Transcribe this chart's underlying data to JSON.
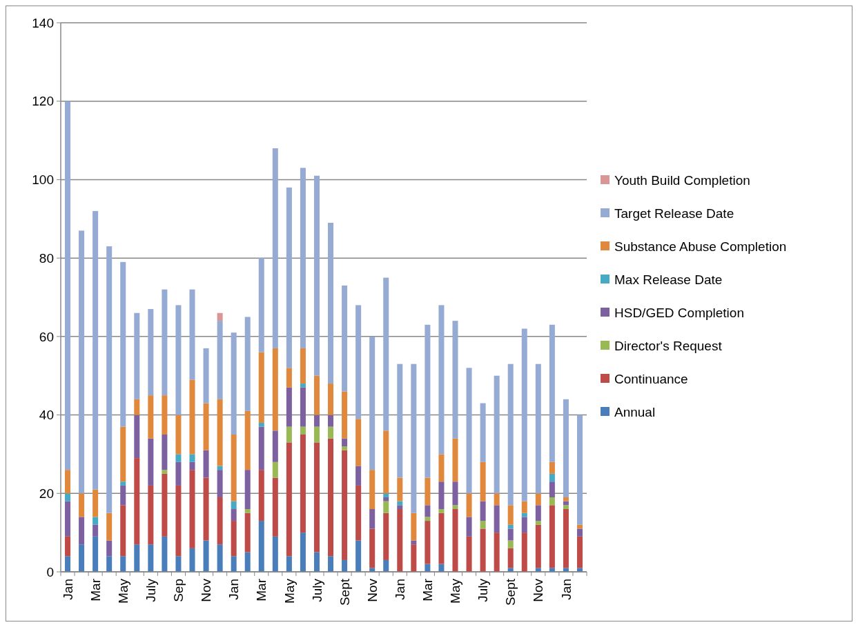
{
  "chart_data": {
    "type": "bar",
    "stacked": true,
    "grid": "y",
    "legend": "right",
    "categories": [
      "Jan",
      null,
      "Mar",
      null,
      "May",
      null,
      "July",
      null,
      "Sep",
      null,
      "Nov",
      null,
      "Jan",
      null,
      "Mar",
      null,
      "May",
      null,
      "July",
      null,
      "Sept",
      null,
      "Nov",
      null,
      "Jan",
      null,
      "Mar",
      null,
      "May",
      null,
      "July",
      null,
      "Sept",
      null,
      "Nov",
      null,
      "Jan",
      null
    ],
    "ylim": [
      0,
      140
    ],
    "yticks": [
      0,
      20,
      40,
      60,
      80,
      100,
      120,
      140
    ],
    "series": [
      {
        "name": "Annual",
        "color": "#4a7ebb",
        "values": [
          4,
          7,
          9,
          4,
          4,
          7,
          7,
          9,
          4,
          6,
          8,
          7,
          4,
          5,
          13,
          9,
          4,
          10,
          5,
          4,
          3,
          8,
          1,
          3,
          0,
          0,
          2,
          2,
          0,
          0,
          0,
          0,
          1,
          0,
          1,
          1,
          1,
          1
        ]
      },
      {
        "name": "Continuance",
        "color": "#be4b48",
        "values": [
          5,
          0,
          0,
          0,
          13,
          22,
          15,
          16,
          18,
          20,
          16,
          12,
          9,
          10,
          13,
          15,
          29,
          25,
          28,
          30,
          28,
          14,
          10,
          12,
          16,
          7,
          11,
          13,
          16,
          9,
          11,
          10,
          5,
          10,
          11,
          16,
          15,
          8
        ]
      },
      {
        "name": "Director's Request",
        "color": "#98b954",
        "values": [
          0,
          0,
          0,
          0,
          0,
          0,
          0,
          1,
          0,
          0,
          0,
          0,
          0,
          1,
          0,
          4,
          4,
          2,
          4,
          3,
          1,
          0,
          0,
          3,
          0,
          0,
          1,
          1,
          1,
          0,
          2,
          0,
          2,
          0,
          1,
          2,
          1,
          0
        ]
      },
      {
        "name": "HSD/GED Completion",
        "color": "#7d60a0",
        "values": [
          9,
          7,
          3,
          4,
          5,
          11,
          12,
          9,
          6,
          2,
          7,
          7,
          3,
          10,
          11,
          8,
          10,
          10,
          3,
          3,
          2,
          5,
          5,
          1,
          1,
          1,
          3,
          7,
          6,
          5,
          5,
          7,
          3,
          4,
          4,
          4,
          1,
          2
        ]
      },
      {
        "name": "Max Release Date",
        "color": "#46aac5",
        "values": [
          2,
          0,
          2,
          0,
          1,
          0,
          0,
          0,
          2,
          2,
          0,
          1,
          2,
          0,
          1,
          0,
          0,
          1,
          0,
          0,
          0,
          0,
          0,
          1,
          1,
          0,
          0,
          0,
          0,
          0,
          0,
          0,
          1,
          1,
          0,
          2,
          0,
          0
        ]
      },
      {
        "name": "Substance Abuse Completion",
        "color": "#e0883c",
        "values": [
          6,
          6,
          7,
          7,
          14,
          4,
          11,
          10,
          10,
          19,
          12,
          17,
          17,
          15,
          18,
          21,
          5,
          9,
          10,
          8,
          12,
          12,
          10,
          16,
          6,
          7,
          7,
          7,
          11,
          6,
          10,
          3,
          5,
          3,
          3,
          3,
          1,
          1
        ]
      },
      {
        "name": "Target Release Date",
        "color": "#95abd3",
        "values": [
          94,
          67,
          71,
          68,
          42,
          22,
          22,
          27,
          28,
          23,
          14,
          20,
          26,
          24,
          24,
          51,
          46,
          46,
          51,
          41,
          27,
          29,
          34,
          39,
          29,
          38,
          39,
          38,
          30,
          32,
          15,
          30,
          36,
          44,
          33,
          35,
          25,
          28
        ]
      },
      {
        "name": "Youth Build Completion",
        "color": "#d99694",
        "values": [
          0,
          0,
          0,
          0,
          0,
          0,
          0,
          0,
          0,
          0,
          0,
          2,
          0,
          0,
          0,
          0,
          0,
          0,
          0,
          0,
          0,
          0,
          0,
          0,
          0,
          0,
          0,
          0,
          0,
          0,
          0,
          0,
          0,
          0,
          0,
          0,
          0,
          0
        ]
      }
    ]
  }
}
